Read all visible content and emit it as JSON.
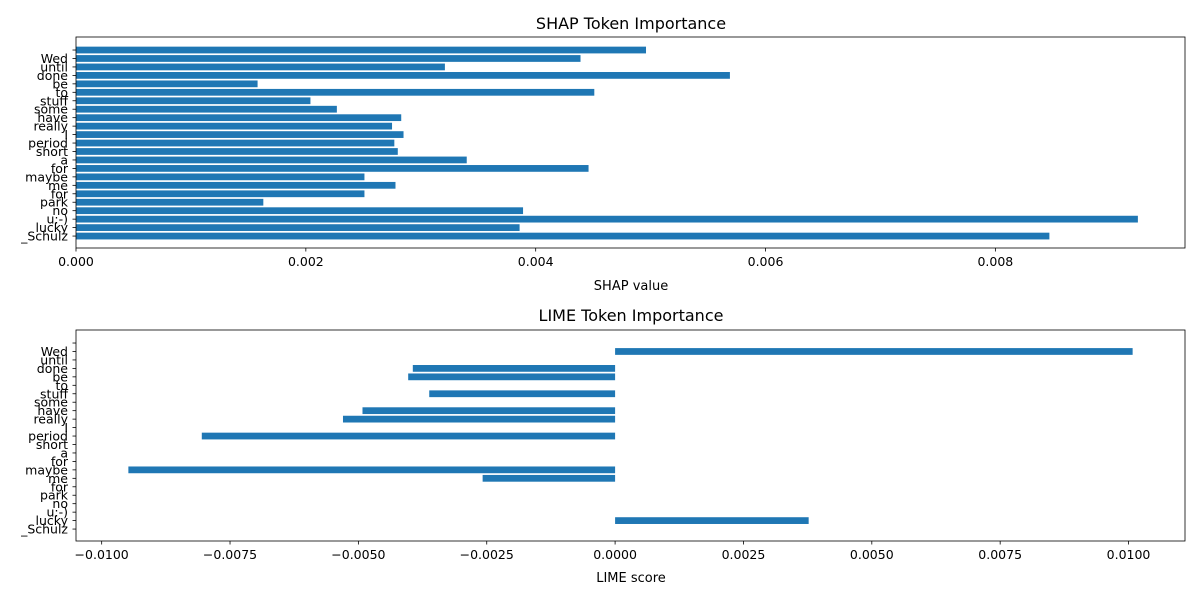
{
  "chart_data": [
    {
      "type": "bar",
      "orientation": "horizontal",
      "title": "SHAP Token Importance",
      "xlabel": "SHAP value",
      "ylabel": "",
      "xlim": [
        0,
        0.00965
      ],
      "xticks": [
        0.0,
        0.002,
        0.004,
        0.006,
        0.008
      ],
      "xtick_labels": [
        "0.000",
        "0.002",
        "0.004",
        "0.006",
        "0.008"
      ],
      "grid": false,
      "bar_color": "#1f77b4",
      "categories": [
        "_Schulz",
        "lucky",
        "u:-)",
        "no",
        "park",
        "for",
        "me",
        "maybe",
        "for",
        "a",
        "short",
        "period",
        "I",
        "really",
        "have",
        "some",
        "stuff",
        "to",
        "be",
        "done",
        "until",
        "Wed",
        ""
      ],
      "values": [
        0.00847,
        0.00386,
        0.00924,
        0.00389,
        0.00163,
        0.00251,
        0.00278,
        0.00251,
        0.00446,
        0.0034,
        0.0028,
        0.00277,
        0.00285,
        0.00275,
        0.00283,
        0.00227,
        0.00204,
        0.00451,
        0.00158,
        0.00569,
        0.00321,
        0.00439,
        0.00496
      ]
    },
    {
      "type": "bar",
      "orientation": "horizontal",
      "title": "LIME Token Importance",
      "xlabel": "LIME score",
      "ylabel": "",
      "xlim": [
        -0.0105,
        0.0111
      ],
      "xticks": [
        -0.01,
        -0.0075,
        -0.005,
        -0.0025,
        0.0,
        0.0025,
        0.005,
        0.0075,
        0.01
      ],
      "xtick_labels": [
        "−0.0100",
        "−0.0075",
        "−0.0050",
        "−0.0025",
        "0.0000",
        "0.0025",
        "0.0050",
        "0.0075",
        "0.0100"
      ],
      "grid": false,
      "bar_color": "#1f77b4",
      "categories": [
        "_Schulz",
        "lucky",
        "u:-)",
        "no",
        "park",
        "for",
        "me",
        "maybe",
        "for",
        "a",
        "short",
        "period",
        "I",
        "really",
        "have",
        "some",
        "stuff",
        "to",
        "be",
        "done",
        "until",
        "Wed",
        ""
      ],
      "values": [
        0,
        0.00377,
        0,
        0,
        0,
        0,
        -0.00258,
        -0.00948,
        0,
        0,
        0,
        -0.00805,
        0,
        -0.0053,
        -0.00492,
        0,
        -0.00362,
        0,
        -0.00403,
        -0.00394,
        0,
        0.01008,
        0
      ]
    }
  ]
}
